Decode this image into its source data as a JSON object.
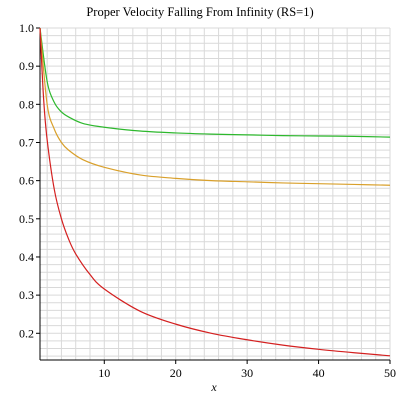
{
  "chart_data": {
    "type": "line",
    "title": "Proper Velocity Falling From Infinity (RS=1)",
    "xlabel": "x",
    "ylabel": "",
    "xlim": [
      1,
      50
    ],
    "ylim": [
      0.13,
      1.0
    ],
    "grid": true,
    "legend": "none",
    "x_ticks": [
      10,
      20,
      30,
      40,
      50
    ],
    "y_ticks": [
      0.2,
      0.3,
      0.4,
      0.5,
      0.6,
      0.7,
      0.8,
      0.9,
      1.0
    ],
    "x_tick_labels": [
      "10",
      "20",
      "30",
      "40",
      "50"
    ],
    "y_tick_labels": [
      "0.2",
      "0.3",
      "0.4",
      "0.5",
      "0.6",
      "0.7",
      "0.8",
      "0.9",
      "1.0"
    ],
    "series": [
      {
        "color": "#2db82d",
        "x": [
          1,
          2,
          3,
          4,
          5,
          7,
          10,
          15,
          20,
          25,
          30,
          35,
          40,
          45,
          50
        ],
        "y": [
          1.0,
          0.86,
          0.805,
          0.78,
          0.767,
          0.75,
          0.74,
          0.73,
          0.725,
          0.722,
          0.72,
          0.718,
          0.717,
          0.716,
          0.714
        ]
      },
      {
        "color": "#d9a02b",
        "x": [
          1,
          2,
          3,
          4,
          5,
          7,
          10,
          15,
          20,
          25,
          30,
          35,
          40,
          45,
          50
        ],
        "y": [
          1.0,
          0.8,
          0.735,
          0.7,
          0.68,
          0.655,
          0.635,
          0.615,
          0.606,
          0.6,
          0.597,
          0.594,
          0.592,
          0.59,
          0.588
        ]
      },
      {
        "color": "#d42020",
        "x": [
          1,
          1.5,
          2,
          3,
          4,
          5,
          6,
          8,
          10,
          15,
          20,
          25,
          30,
          35,
          40,
          45,
          50
        ],
        "y": [
          1.0,
          0.816,
          0.707,
          0.577,
          0.5,
          0.447,
          0.408,
          0.354,
          0.316,
          0.258,
          0.224,
          0.2,
          0.183,
          0.169,
          0.158,
          0.149,
          0.141
        ]
      }
    ]
  }
}
